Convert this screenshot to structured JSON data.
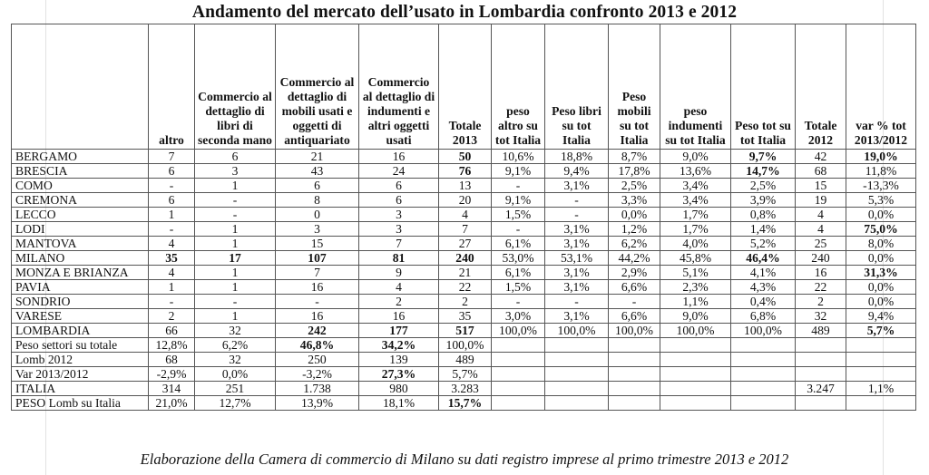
{
  "title": "Andamento del mercato dell’usato in Lombardia confronto 2013 e 2012",
  "columns": [
    "",
    "altro",
    "Commercio al dettaglio di libri di seconda mano",
    "Commercio al dettaglio di mobili usati e oggetti di antiquariato",
    "Commercio al dettaglio di indumenti e altri oggetti usati",
    "Totale 2013",
    "peso altro su tot Italia",
    "Peso libri su tot Italia",
    "Peso mobili su tot Italia",
    "peso indumenti su tot Italia",
    "Peso tot su tot Italia",
    "Totale 2012",
    "var % tot 2013/2012"
  ],
  "rows": [
    {
      "label": "BERGAMO",
      "cells": [
        "7",
        "6",
        "21",
        "16",
        "50",
        "10,6%",
        "18,8%",
        "8,7%",
        "9,0%",
        "9,7%",
        "42",
        "19,0%"
      ],
      "bold": [
        4,
        9,
        11
      ]
    },
    {
      "label": "BRESCIA",
      "cells": [
        "6",
        "3",
        "43",
        "24",
        "76",
        "9,1%",
        "9,4%",
        "17,8%",
        "13,6%",
        "14,7%",
        "68",
        "11,8%"
      ],
      "bold": [
        4,
        9
      ]
    },
    {
      "label": "COMO",
      "cells": [
        "-",
        "1",
        "6",
        "6",
        "13",
        "-",
        "3,1%",
        "2,5%",
        "3,4%",
        "2,5%",
        "15",
        "-13,3%"
      ],
      "bold": []
    },
    {
      "label": "CREMONA",
      "cells": [
        "6",
        "-",
        "8",
        "6",
        "20",
        "9,1%",
        "-",
        "3,3%",
        "3,4%",
        "3,9%",
        "19",
        "5,3%"
      ],
      "bold": []
    },
    {
      "label": "LECCO",
      "cells": [
        "1",
        "-",
        "0",
        "3",
        "4",
        "1,5%",
        "-",
        "0,0%",
        "1,7%",
        "0,8%",
        "4",
        "0,0%"
      ],
      "bold": []
    },
    {
      "label": "LODI",
      "cells": [
        "-",
        "1",
        "3",
        "3",
        "7",
        "-",
        "3,1%",
        "1,2%",
        "1,7%",
        "1,4%",
        "4",
        "75,0%"
      ],
      "bold": [
        11
      ]
    },
    {
      "label": "MANTOVA",
      "cells": [
        "4",
        "1",
        "15",
        "7",
        "27",
        "6,1%",
        "3,1%",
        "6,2%",
        "4,0%",
        "5,2%",
        "25",
        "8,0%"
      ],
      "bold": []
    },
    {
      "label": "MILANO",
      "cells": [
        "35",
        "17",
        "107",
        "81",
        "240",
        "53,0%",
        "53,1%",
        "44,2%",
        "45,8%",
        "46,4%",
        "240",
        "0,0%"
      ],
      "bold": [
        0,
        1,
        2,
        3,
        4,
        9
      ]
    },
    {
      "label": "MONZA E BRIANZA",
      "cells": [
        "4",
        "1",
        "7",
        "9",
        "21",
        "6,1%",
        "3,1%",
        "2,9%",
        "5,1%",
        "4,1%",
        "16",
        "31,3%"
      ],
      "bold": [
        11
      ]
    },
    {
      "label": "PAVIA",
      "cells": [
        "1",
        "1",
        "16",
        "4",
        "22",
        "1,5%",
        "3,1%",
        "6,6%",
        "2,3%",
        "4,3%",
        "22",
        "0,0%"
      ],
      "bold": []
    },
    {
      "label": "SONDRIO",
      "cells": [
        "-",
        "-",
        "-",
        "2",
        "2",
        "-",
        "-",
        "-",
        "1,1%",
        "0,4%",
        "2",
        "0,0%"
      ],
      "bold": []
    },
    {
      "label": "VARESE",
      "cells": [
        "2",
        "1",
        "16",
        "16",
        "35",
        "3,0%",
        "3,1%",
        "6,6%",
        "9,0%",
        "6,8%",
        "32",
        "9,4%"
      ],
      "bold": []
    },
    {
      "label": "LOMBARDIA",
      "cells": [
        "66",
        "32",
        "242",
        "177",
        "517",
        "100,0%",
        "100,0%",
        "100,0%",
        "100,0%",
        "100,0%",
        "489",
        "5,7%"
      ],
      "bold": [
        2,
        3,
        4,
        11
      ]
    },
    {
      "label": "Peso settori su totale",
      "cells": [
        "12,8%",
        "6,2%",
        "46,8%",
        "34,2%",
        "100,0%",
        "",
        "",
        "",
        "",
        "",
        "",
        ""
      ],
      "bold": [
        2,
        3
      ]
    },
    {
      "label": "Lomb 2012",
      "cells": [
        "68",
        "32",
        "250",
        "139",
        "489",
        "",
        "",
        "",
        "",
        "",
        "",
        ""
      ],
      "bold": []
    },
    {
      "label": "Var 2013/2012",
      "cells": [
        "-2,9%",
        "0,0%",
        "-3,2%",
        "27,3%",
        "5,7%",
        "",
        "",
        "",
        "",
        "",
        "",
        ""
      ],
      "bold": [
        3
      ]
    },
    {
      "label": "ITALIA",
      "cells": [
        "314",
        "251",
        "1.738",
        "980",
        "3.283",
        "",
        "",
        "",
        "",
        "",
        "3.247",
        "1,1%"
      ],
      "bold": []
    },
    {
      "label": "PESO Lomb su Italia",
      "cells": [
        "21,0%",
        "12,7%",
        "13,9%",
        "18,1%",
        "15,7%",
        "",
        "",
        "",
        "",
        "",
        "",
        ""
      ],
      "bold": [
        4
      ]
    }
  ],
  "footer": "Elaborazione della Camera di commercio di Milano su dati registro imprese al primo trimestre 2013 e 2012"
}
